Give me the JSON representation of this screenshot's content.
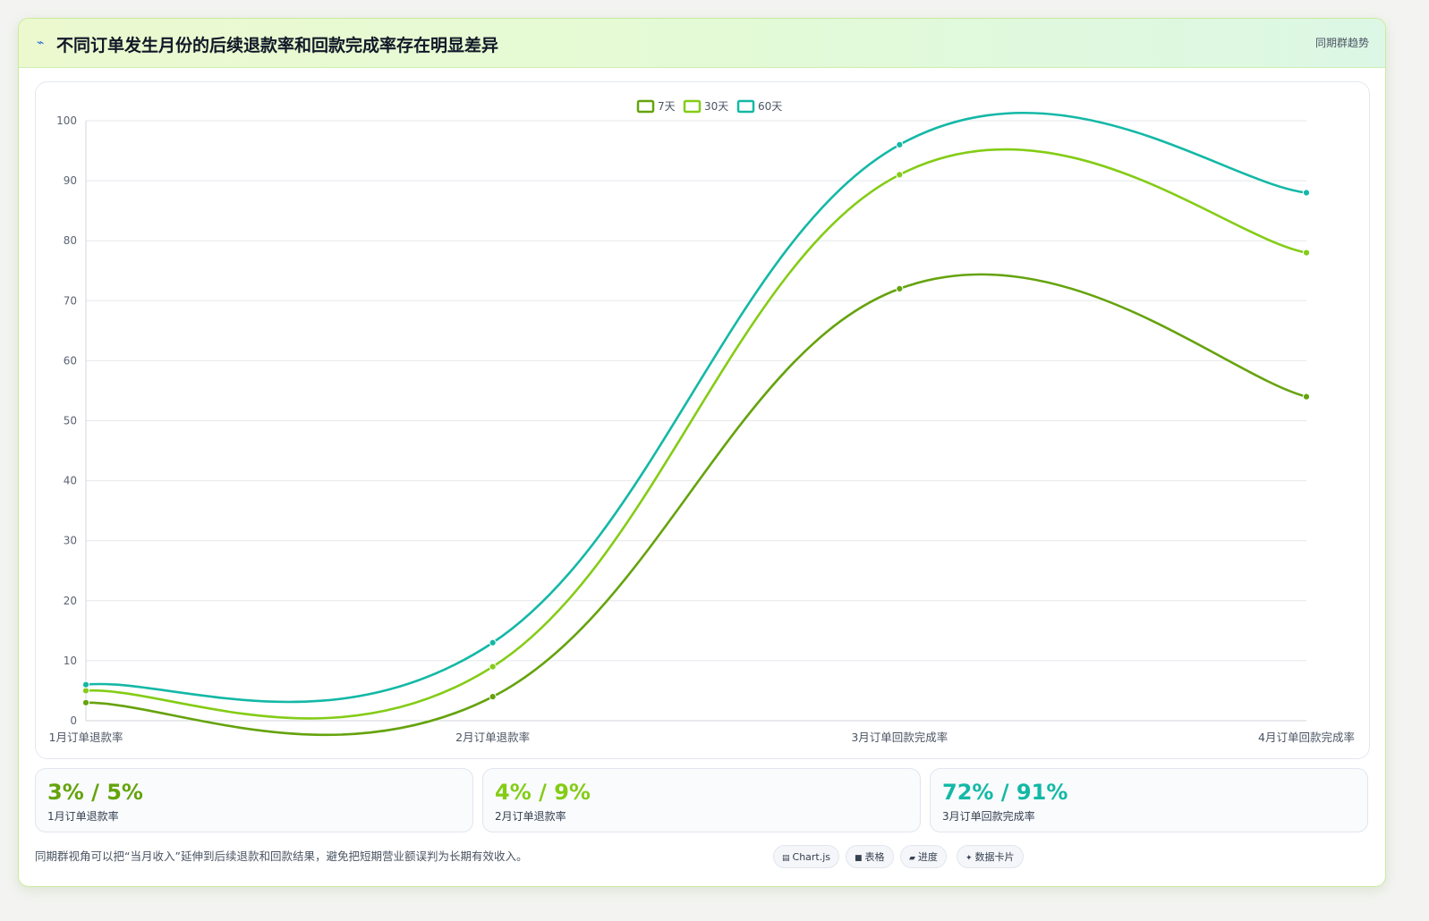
{
  "header": {
    "title": "不同订单发生月份的后续退款率和回款完成率存在明显差异",
    "tag": "同期群趋势",
    "icon": "lightning-icon"
  },
  "chart_data": {
    "type": "line",
    "categories": [
      "1月订单退款率",
      "2月订单退款率",
      "3月订单回款完成率",
      "4月订单回款完成率"
    ],
    "series": [
      {
        "name": "7天",
        "values": [
          3,
          4,
          72,
          54
        ],
        "color": "#65a30d"
      },
      {
        "name": "30天",
        "values": [
          5,
          9,
          91,
          78
        ],
        "color": "#84cc16"
      },
      {
        "name": "60天",
        "values": [
          6,
          13,
          96,
          88
        ],
        "color": "#14b8a6"
      }
    ],
    "ylim": [
      0,
      100
    ],
    "yticks": [
      0,
      10,
      20,
      30,
      40,
      50,
      60,
      70,
      80,
      90,
      100
    ],
    "grid": true,
    "legend": "top-center",
    "smooth": true
  },
  "cards": [
    {
      "value": "3% / 5%",
      "label": "1月订单退款率",
      "color": "#65a30d"
    },
    {
      "value": "4% / 9%",
      "label": "2月订单退款率",
      "color": "#84cc16"
    },
    {
      "value": "72% / 91%",
      "label": "3月订单回款完成率",
      "color": "#14b8a6"
    }
  ],
  "footnote": "同期群视角可以把“当月收入”延伸到后续退款和回款结果，避免把短期营业额误判为长期有效收入。",
  "pills": [
    {
      "icon": "▤",
      "label": "Chart.js"
    },
    {
      "icon": "■",
      "label": "表格"
    },
    {
      "icon": "▰",
      "label": "进度"
    },
    {
      "icon": "✦",
      "label": "数据卡片"
    }
  ]
}
